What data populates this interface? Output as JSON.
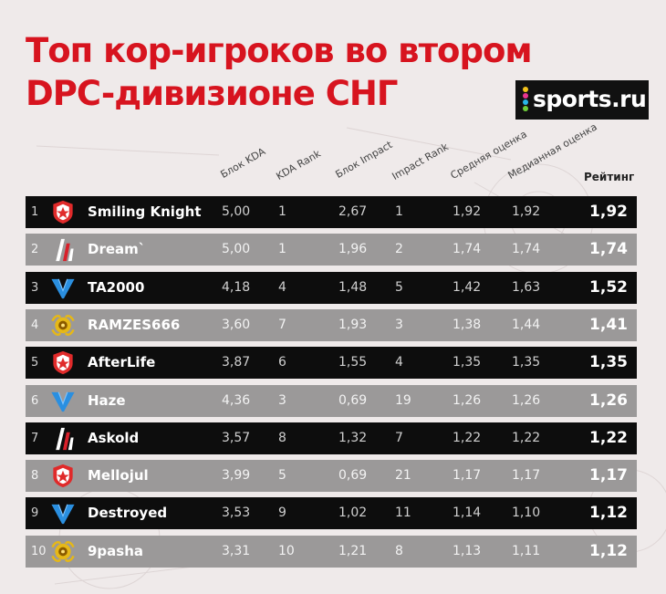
{
  "title": {
    "line1": "Топ кор-игроков во втором",
    "line2": "DPC-дивизионе СНГ"
  },
  "logo": {
    "text": "sports.ru"
  },
  "headers": {
    "kda_block": "Блок KDA",
    "kda_rank": "KDA Rank",
    "impact_block": "Блок Impact",
    "impact_rank": "Impact Rank",
    "avg_score": "Средняя оценка",
    "median_score": "Медианная оценка",
    "rating": "Рейтинг"
  },
  "colors": {
    "title_red": "#d7141f",
    "dark_row": "#0d0d0d",
    "gray_row": "#9b9999",
    "gambit_red": "#e02a2a",
    "virtus_blue": "#2a8fe0",
    "hellraisers_gold": "#e6b817"
  },
  "rows": [
    {
      "rank": "1",
      "team_icon": "gambit-logo-icon",
      "name": "Smiling Knight",
      "kda": "5,00",
      "kda_rank": "1",
      "impact": "2,67",
      "impact_rank": "1",
      "avg": "1,92",
      "median": "1,92",
      "rating": "1,92"
    },
    {
      "rank": "2",
      "team_icon": "hellraisers-logo-icon",
      "name": "Dream`",
      "kda": "5,00",
      "kda_rank": "1",
      "impact": "1,96",
      "impact_rank": "2",
      "avg": "1,74",
      "median": "1,74",
      "rating": "1,74"
    },
    {
      "rank": "3",
      "team_icon": "virtus-pro-logo-icon",
      "name": "TA2000",
      "kda": "4,18",
      "kda_rank": "4",
      "impact": "1,48",
      "impact_rank": "5",
      "avg": "1,42",
      "median": "1,63",
      "rating": "1,52"
    },
    {
      "rank": "4",
      "team_icon": "gold-team-logo-icon",
      "name": "RAMZES666",
      "kda": "3,60",
      "kda_rank": "7",
      "impact": "1,93",
      "impact_rank": "3",
      "avg": "1,38",
      "median": "1,44",
      "rating": "1,41"
    },
    {
      "rank": "5",
      "team_icon": "gambit-logo-icon",
      "name": "AfterLife",
      "kda": "3,87",
      "kda_rank": "6",
      "impact": "1,55",
      "impact_rank": "4",
      "avg": "1,35",
      "median": "1,35",
      "rating": "1,35"
    },
    {
      "rank": "6",
      "team_icon": "virtus-pro-logo-icon",
      "name": "Haze",
      "kda": "4,36",
      "kda_rank": "3",
      "impact": "0,69",
      "impact_rank": "19",
      "avg": "1,26",
      "median": "1,26",
      "rating": "1,26"
    },
    {
      "rank": "7",
      "team_icon": "hellraisers-logo-icon",
      "name": "Askold",
      "kda": "3,57",
      "kda_rank": "8",
      "impact": "1,32",
      "impact_rank": "7",
      "avg": "1,22",
      "median": "1,22",
      "rating": "1,22"
    },
    {
      "rank": "8",
      "team_icon": "gambit-logo-icon",
      "name": "Mellojul",
      "kda": "3,99",
      "kda_rank": "5",
      "impact": "0,69",
      "impact_rank": "21",
      "avg": "1,17",
      "median": "1,17",
      "rating": "1,17"
    },
    {
      "rank": "9",
      "team_icon": "virtus-pro-logo-icon",
      "name": "Destroyed",
      "kda": "3,53",
      "kda_rank": "9",
      "impact": "1,02",
      "impact_rank": "11",
      "avg": "1,14",
      "median": "1,10",
      "rating": "1,12"
    },
    {
      "rank": "10",
      "team_icon": "gold-team-logo-icon",
      "name": "9pasha",
      "kda": "3,31",
      "kda_rank": "10",
      "impact": "1,21",
      "impact_rank": "8",
      "avg": "1,13",
      "median": "1,11",
      "rating": "1,12"
    }
  ]
}
